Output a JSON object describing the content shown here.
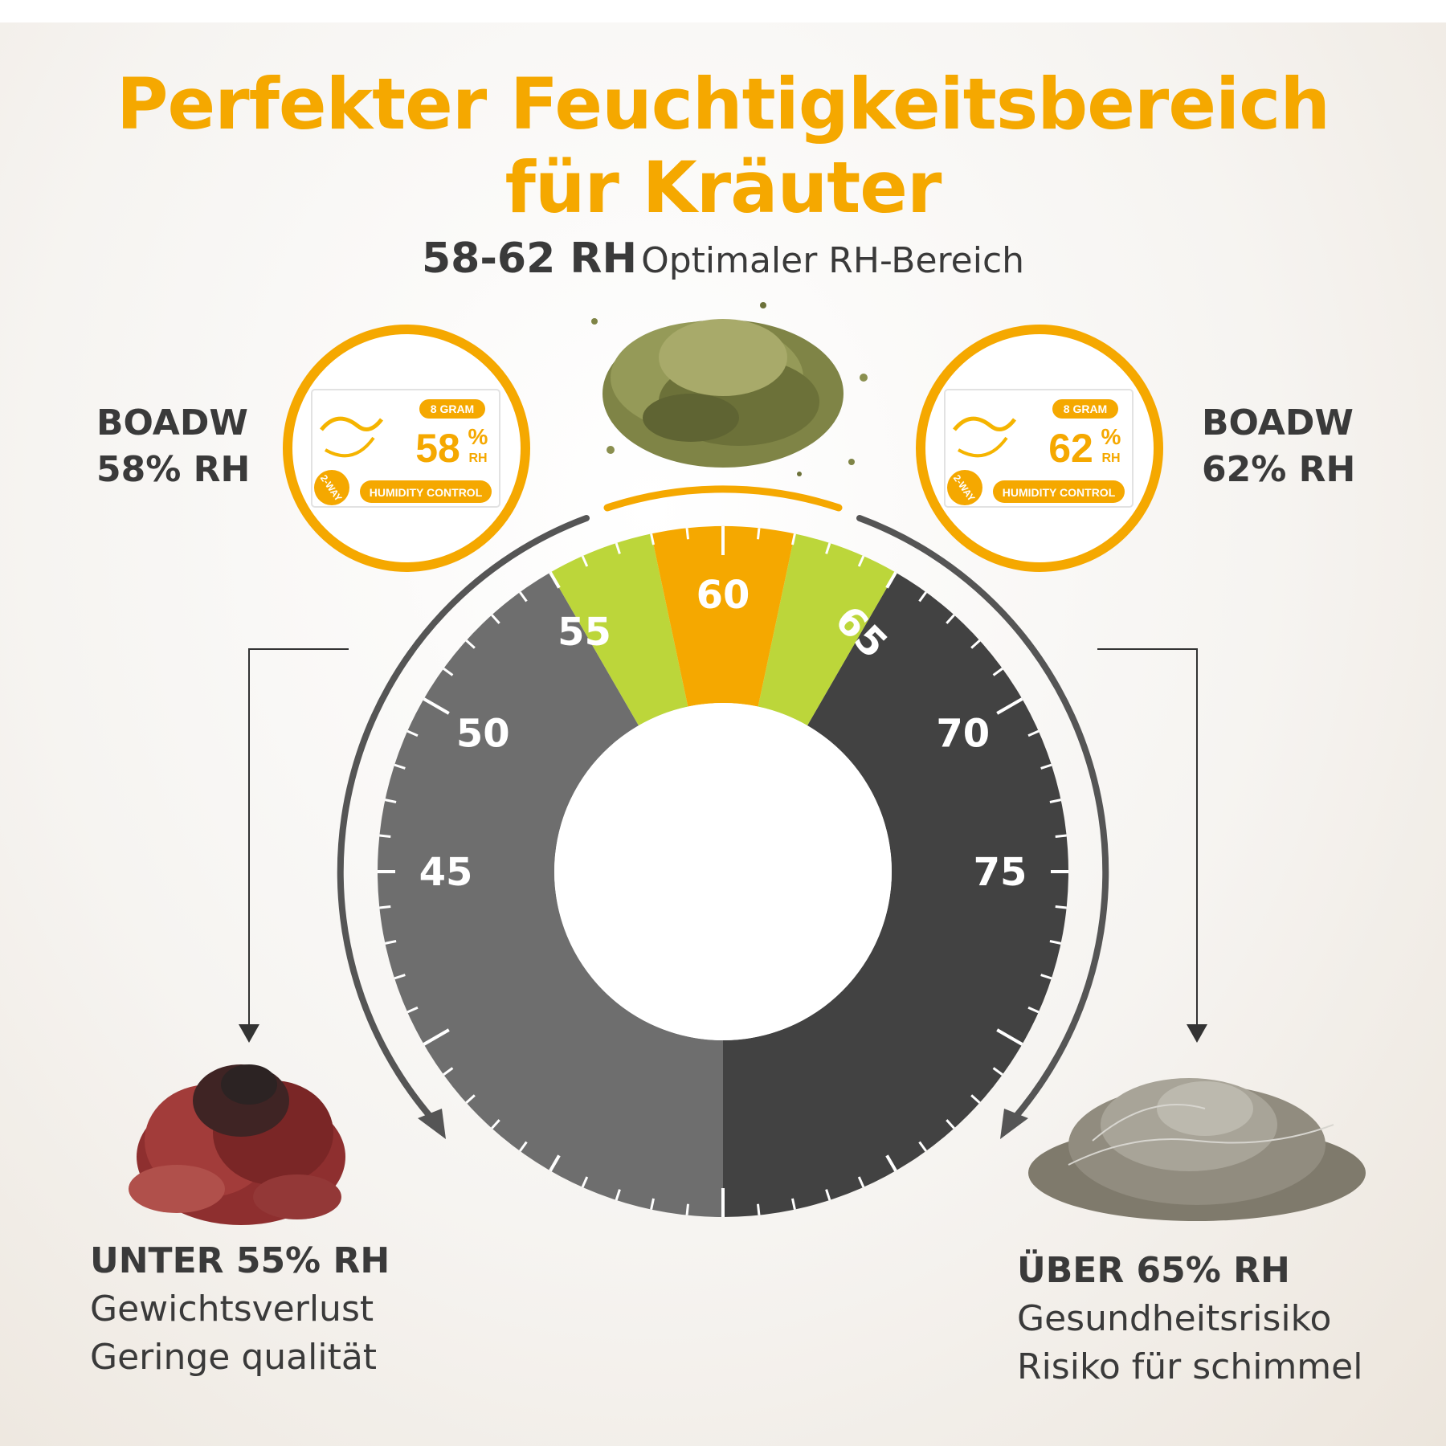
{
  "title": {
    "line1": "Perfekter Feuchtigkeitsbereich",
    "line2": "für Kräuter"
  },
  "subtitle": {
    "range": "58-62 RH",
    "text": "Optimaler RH-Bereich"
  },
  "left_product": {
    "brand": "BOADW",
    "rh": "58% RH",
    "packet": {
      "weight": "8 GRAM",
      "percent": "58",
      "percent_sign": "%",
      "unit": "RH",
      "label": "HUMIDITY CONTROL",
      "badge": "2-WAY"
    }
  },
  "right_product": {
    "brand": "BOADW",
    "rh": "62% RH",
    "packet": {
      "weight": "8 GRAM",
      "percent": "62",
      "percent_sign": "%",
      "unit": "RH",
      "label": "HUMIDITY CONTROL",
      "badge": "2-WAY"
    }
  },
  "gauge": {
    "tick_labels": [
      "45",
      "50",
      "55",
      "60",
      "65",
      "70",
      "75"
    ],
    "optimal_color": "#f5a800",
    "acceptable_color": "#bcd63a",
    "low_color": "#6e6e6e",
    "high_color": "#424242"
  },
  "low_note": {
    "heading": "UNTER 55% RH",
    "line1": "Gewichtsverlust",
    "line2": "Geringe qualität"
  },
  "high_note": {
    "heading": "ÜBER 65% RH",
    "line1": "Gesundheitsrisiko",
    "line2": "Risiko für schimmel"
  }
}
